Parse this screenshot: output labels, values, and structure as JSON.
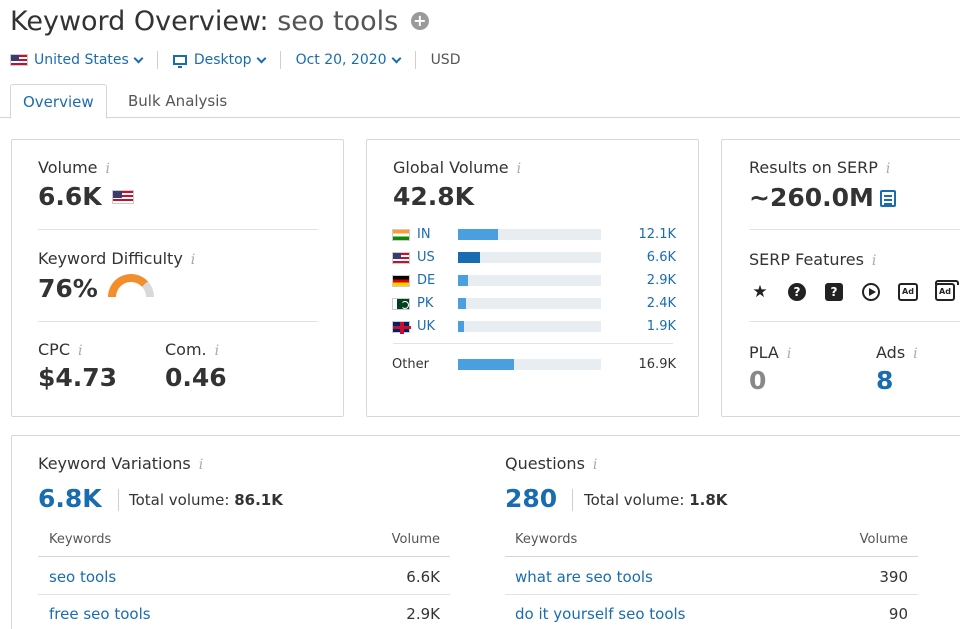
{
  "header": {
    "title_prefix": "Keyword Overview:",
    "keyword": "seo tools",
    "add_icon": "plus-circle-icon"
  },
  "filters": {
    "country": "United States",
    "device": "Desktop",
    "date": "Oct 20, 2020",
    "currency": "USD"
  },
  "tabs": [
    {
      "label": "Overview",
      "active": true
    },
    {
      "label": "Bulk Analysis",
      "active": false
    }
  ],
  "volume_card": {
    "volume_label": "Volume",
    "volume_value": "6.6K",
    "kd_label": "Keyword Difficulty",
    "kd_value": "76%",
    "kd_percent": 76,
    "cpc_label": "CPC",
    "cpc_value": "$4.73",
    "com_label": "Com.",
    "com_value": "0.46",
    "colors": {
      "gauge": "#f28e2b",
      "gauge_bg": "#d9d9d9"
    }
  },
  "global_card": {
    "label": "Global Volume",
    "value": "42.8K",
    "countries": [
      {
        "code": "IN",
        "value": "12.1K",
        "share": 0.283
      },
      {
        "code": "US",
        "value": "6.6K",
        "share": 0.154
      },
      {
        "code": "DE",
        "value": "2.9K",
        "share": 0.068
      },
      {
        "code": "PK",
        "value": "2.4K",
        "share": 0.056
      },
      {
        "code": "UK",
        "value": "1.9K",
        "share": 0.044
      }
    ],
    "other_label": "Other",
    "other_value": "16.9K",
    "other_share": 0.395,
    "colors": {
      "bar": "#4a9fe0",
      "bar_selected": "#1a6cb0",
      "track": "#e8edf2"
    }
  },
  "serp_card": {
    "results_label": "Results on SERP",
    "results_value": "~260.0M",
    "features_label": "SERP Features",
    "features": [
      "star-icon",
      "question-circle-icon",
      "question-box-icon",
      "play-icon",
      "ad-icon",
      "ad-stack-icon"
    ],
    "pla_label": "PLA",
    "pla_value": "0",
    "ads_label": "Ads",
    "ads_value": "8"
  },
  "variations": {
    "label": "Keyword Variations",
    "count": "6.8K",
    "total_label": "Total volume:",
    "total_value": "86.1K",
    "col_keywords": "Keywords",
    "col_volume": "Volume",
    "rows": [
      {
        "keyword": "seo tools",
        "volume": "6.6K"
      },
      {
        "keyword": "free seo tools",
        "volume": "2.9K"
      }
    ]
  },
  "questions": {
    "label": "Questions",
    "count": "280",
    "total_label": "Total volume:",
    "total_value": "1.8K",
    "col_keywords": "Keywords",
    "col_volume": "Volume",
    "rows": [
      {
        "keyword": "what are seo tools",
        "volume": "390"
      },
      {
        "keyword": "do it yourself seo tools",
        "volume": "90"
      }
    ]
  }
}
